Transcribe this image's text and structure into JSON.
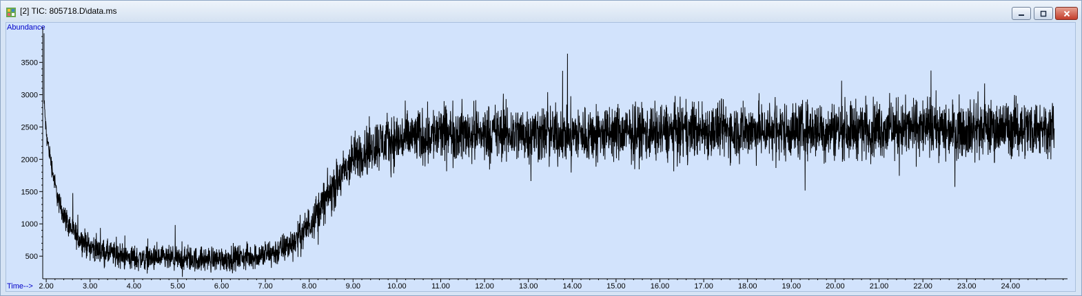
{
  "window": {
    "title": "[2] TIC: 805718.D\\data.ms",
    "icons": [
      "chromatogram-app-icon",
      "minimize-icon",
      "restore-icon",
      "close-icon"
    ],
    "colors": {
      "plot_background": "#d2e3fc",
      "trace": "#000000",
      "axis_label": "#0000c8"
    }
  },
  "chart_data": {
    "type": "line",
    "title": "",
    "xlabel": "Time-->",
    "ylabel": "Abundance",
    "xlim": [
      1.92,
      25.3
    ],
    "ylim": [
      150,
      4050
    ],
    "x_ticks": [
      2,
      3,
      4,
      5,
      6,
      7,
      8,
      9,
      10,
      11,
      12,
      13,
      14,
      15,
      16,
      17,
      18,
      19,
      20,
      21,
      22,
      23,
      24
    ],
    "x_tick_labels": [
      "2.00",
      "3.00",
      "4.00",
      "5.00",
      "6.00",
      "7.00",
      "8.00",
      "9.00",
      "10.00",
      "11.00",
      "12.00",
      "13.00",
      "14.00",
      "15.00",
      "16.00",
      "17.00",
      "18.00",
      "19.00",
      "20.00",
      "21.00",
      "22.00",
      "23.00",
      "24.00"
    ],
    "y_ticks": [
      500,
      1000,
      1500,
      2000,
      2500,
      3000,
      3500
    ],
    "y_tick_labels": [
      "500",
      "1000",
      "1500",
      "2000",
      "2500",
      "3000",
      "3500"
    ],
    "grid": false,
    "series": [
      {
        "x": [
          1.95,
          2.0,
          2.1,
          2.2,
          2.3,
          2.5,
          2.7,
          3.0,
          3.3,
          3.6,
          3.8,
          4.0,
          4.5,
          5.0,
          5.5,
          6.0,
          6.5,
          7.0,
          7.3,
          7.6,
          7.9,
          8.2,
          8.5,
          8.8,
          9.0,
          9.3,
          9.6,
          10.0,
          10.5,
          11.0,
          12.0,
          13.0,
          14.0,
          15.0,
          16.0,
          17.0,
          18.0,
          19.0,
          20.0,
          21.0,
          22.0,
          23.0,
          24.0,
          25.0
        ],
        "y": [
          2900,
          2400,
          2000,
          1600,
          1300,
          1000,
          800,
          650,
          560,
          520,
          490,
          470,
          460,
          450,
          450,
          460,
          480,
          520,
          580,
          700,
          900,
          1200,
          1500,
          1800,
          2000,
          2150,
          2250,
          2300,
          2350,
          2400,
          2400,
          2400,
          2380,
          2400,
          2420,
          2450,
          2450,
          2450,
          2460,
          2480,
          2480,
          2470,
          2480,
          2490
        ],
        "noise_amplitude": [
          80,
          80,
          90,
          100,
          110,
          120,
          120,
          120,
          120,
          120,
          120,
          120,
          120,
          120,
          120,
          120,
          120,
          130,
          140,
          150,
          170,
          190,
          210,
          220,
          230,
          240,
          250,
          260,
          260,
          270,
          270,
          270,
          270,
          270,
          270,
          270,
          270,
          270,
          270,
          270,
          270,
          270,
          270,
          270
        ]
      }
    ]
  }
}
